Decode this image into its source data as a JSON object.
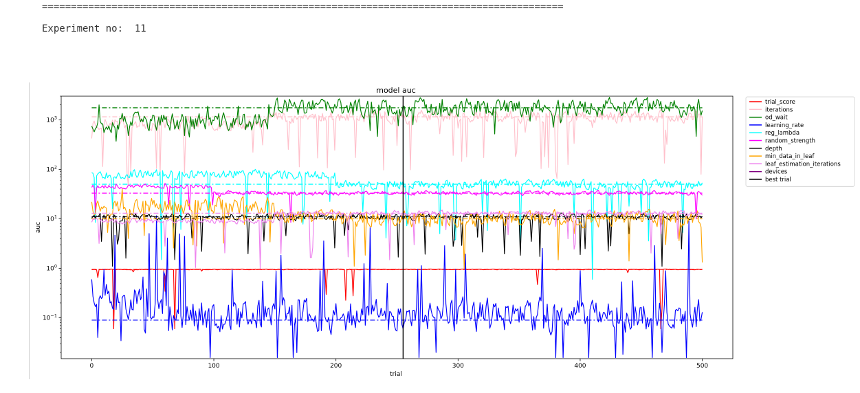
{
  "output": {
    "separator": "==========================================================================================",
    "experiment_label": "Experiment no:",
    "experiment_number": "11"
  },
  "chart_data": {
    "type": "line",
    "title": "model auc",
    "xlabel": "trial",
    "ylabel": "auc",
    "xlim": [
      -25,
      525
    ],
    "ylim": [
      0.015,
      3000
    ],
    "yscale": "log",
    "x_ticks": [
      0,
      100,
      200,
      300,
      400,
      500
    ],
    "x_tick_labels": [
      "0",
      "100",
      "200",
      "300",
      "400",
      "500"
    ],
    "y_ticks": [
      0.1,
      1,
      10,
      100,
      1000
    ],
    "y_tick_labels": [
      {
        "base": "10",
        "exp": "−1"
      },
      {
        "base": "10",
        "exp": "0"
      },
      {
        "base": "10",
        "exp": "1"
      },
      {
        "base": "10",
        "exp": "2"
      },
      {
        "base": "10",
        "exp": "3"
      }
    ],
    "best_trial_x": 255,
    "n_trials": 501,
    "legend_position": "outside-right",
    "series": [
      {
        "name": "trial_score",
        "color": "#ff0000",
        "level": 0.95,
        "early_level": 0.95,
        "settle": 0,
        "spread": 0.02,
        "spike_prob": 0.015,
        "spike_dir": -1,
        "spike_mag": 1.0,
        "best": 0.95,
        "seed": 11,
        "spikes": [
          [
            5,
            0.65
          ],
          [
            18,
            0.06
          ],
          [
            34,
            0.85
          ],
          [
            68,
            0.06
          ],
          [
            90,
            0.88
          ],
          [
            365,
            0.47
          ],
          [
            439,
            0.82
          ],
          [
            466,
            0.06
          ]
        ]
      },
      {
        "name": "iterations",
        "color": "#ffc0cb",
        "level": 1150,
        "early_level": 850,
        "settle": 140,
        "spread": 0.35,
        "spike_prob": 0.05,
        "spike_dir": -1,
        "spike_mag": 1.2,
        "best": 1150,
        "seed": 23,
        "spikes": [
          [
            0,
            420
          ],
          [
            140,
            310
          ],
          [
            285,
            520
          ],
          [
            300,
            680
          ],
          [
            355,
            560
          ],
          [
            410,
            700
          ],
          [
            470,
            620
          ]
        ]
      },
      {
        "name": "od_wait",
        "color": "#008000",
        "level": 1750,
        "early_level": 900,
        "settle": 145,
        "spread": 0.5,
        "spike_prob": 0.03,
        "spike_dir": -1,
        "spike_mag": 0.5,
        "best": 1750,
        "seed": 37,
        "spikes": [
          [
            6,
            2000
          ],
          [
            10,
            550
          ],
          [
            30,
            480
          ],
          [
            80,
            450
          ],
          [
            95,
            1900
          ],
          [
            120,
            1900
          ],
          [
            390,
            1250
          ],
          [
            408,
            1300
          ]
        ]
      },
      {
        "name": "learning_rate",
        "color": "#0000ff",
        "level": 0.11,
        "early_level": 0.22,
        "settle": 40,
        "spread": 0.9,
        "spike_prob": 0.08,
        "spike_dir": 0,
        "spike_mag": 1.8,
        "best": 0.09,
        "seed": 51,
        "spikes": [
          [
            0,
            0.6
          ],
          [
            5,
            0.04
          ],
          [
            10,
            0.95
          ],
          [
            60,
            0.7
          ],
          [
            140,
            0.55
          ],
          [
            187,
            0.9
          ],
          [
            255,
            0.06
          ],
          [
            282,
            0.02
          ],
          [
            298,
            0.95
          ],
          [
            400,
            0.9
          ],
          [
            467,
            0.02
          ],
          [
            500,
            0.13
          ]
        ]
      },
      {
        "name": "reg_lambda",
        "color": "#00ffff",
        "level": 50,
        "early_level": 80,
        "settle": 200,
        "spread": 0.25,
        "spike_prob": 0.05,
        "spike_dir": -1,
        "spike_mag": 1.2,
        "best": 50,
        "seed": 67,
        "spikes": [
          [
            0,
            85
          ],
          [
            57,
            1.5
          ],
          [
            285,
            5
          ],
          [
            410,
            0.6
          ],
          [
            395,
            12
          ],
          [
            440,
            18
          ]
        ]
      },
      {
        "name": "random_strength",
        "color": "#ff00ff",
        "level": 33,
        "early_level": 45,
        "settle": 100,
        "spread": 0.12,
        "spike_prob": 0.02,
        "spike_dir": -1,
        "spike_mag": 0.6,
        "best": 33,
        "seed": 79,
        "spikes": [
          [
            20,
            50
          ],
          [
            60,
            52
          ],
          [
            105,
            28
          ]
        ]
      },
      {
        "name": "depth",
        "color": "#000000",
        "level": 11,
        "early_level": 11,
        "settle": 0,
        "spread": 0.2,
        "spike_prob": 0.05,
        "spike_dir": -1,
        "spike_mag": 0.9,
        "best": 11,
        "seed": 83,
        "spikes": [
          [
            8,
            3.5
          ],
          [
            17,
            1.1
          ],
          [
            68,
            1.5
          ],
          [
            90,
            2.2
          ],
          [
            210,
            6
          ],
          [
            297,
            4
          ],
          [
            360,
            3.5
          ],
          [
            440,
            5
          ],
          [
            467,
            1.1
          ]
        ]
      },
      {
        "name": "min_data_in_leaf",
        "color": "#ffa500",
        "level": 10,
        "early_level": 18,
        "settle": 150,
        "spread": 0.45,
        "spike_prob": 0.04,
        "spike_dir": -1,
        "spike_mag": 1.0,
        "best": 10,
        "seed": 97,
        "spikes": [
          [
            0,
            22
          ],
          [
            25,
            40
          ],
          [
            30,
            4
          ],
          [
            215,
            1.1
          ],
          [
            395,
            5
          ],
          [
            470,
            3
          ]
        ]
      },
      {
        "name": "leaf_estimation_iterations",
        "color": "#ee82ee",
        "level": 13,
        "early_level": 9,
        "settle": 150,
        "spread": 0.15,
        "spike_prob": 0.03,
        "spike_dir": -1,
        "spike_mag": 1.0,
        "best": 13,
        "seed": 101,
        "spikes": [
          [
            138,
            1.0
          ],
          [
            60,
            2.8
          ],
          [
            290,
            6
          ],
          [
            380,
            7
          ],
          [
            480,
            4
          ]
        ]
      },
      {
        "name": "devices",
        "color": "#800080",
        "level": 10,
        "early_level": 10,
        "settle": 0,
        "spread": 0.0,
        "spike_prob": 0,
        "spike_dir": 0,
        "spike_mag": 0,
        "best": null,
        "seed": 5,
        "hidden": true,
        "spikes": []
      },
      {
        "name": "best trial",
        "color": "#000000",
        "level": null,
        "kind": "vline",
        "seed": 1,
        "spikes": []
      }
    ]
  }
}
